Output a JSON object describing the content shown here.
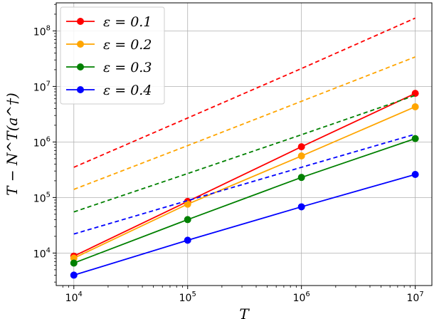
{
  "chart_data": {
    "type": "line",
    "xscale": "log",
    "yscale": "log",
    "xlim": [
      7000,
      14000000
    ],
    "ylim": [
      2600,
      320000000
    ],
    "grid": true,
    "legend_position": "top-left",
    "xlabel": "T",
    "ylabel": "T − N^T(a^†)",
    "x_ticks": [
      {
        "value": 10000,
        "base": "10",
        "exp": "4"
      },
      {
        "value": 100000,
        "base": "10",
        "exp": "5"
      },
      {
        "value": 1000000,
        "base": "10",
        "exp": "6"
      },
      {
        "value": 10000000,
        "base": "10",
        "exp": "7"
      }
    ],
    "y_ticks": [
      {
        "value": 10000,
        "base": "10",
        "exp": "4"
      },
      {
        "value": 100000,
        "base": "10",
        "exp": "5"
      },
      {
        "value": 1000000,
        "base": "10",
        "exp": "6"
      },
      {
        "value": 10000000,
        "base": "10",
        "exp": "7"
      },
      {
        "value": 100000000,
        "base": "10",
        "exp": "8"
      }
    ],
    "x": [
      10000,
      100000,
      1000000,
      10000000
    ],
    "series": [
      {
        "name": "ε = 0.1",
        "color": "#ff0000",
        "values": [
          8800,
          85000,
          820000,
          7500000
        ],
        "bound": [
          350000,
          2700000,
          21000000,
          170000000
        ]
      },
      {
        "name": "ε = 0.2",
        "color": "#ffa500",
        "values": [
          8100,
          76000,
          560000,
          4300000
        ],
        "bound": [
          140000,
          860000,
          5400000,
          34000000
        ]
      },
      {
        "name": "ε = 0.3",
        "color": "#008000",
        "values": [
          6600,
          40000,
          230000,
          1150000
        ],
        "bound": [
          55000,
          270000,
          1350000,
          6900000
        ]
      },
      {
        "name": "ε = 0.4",
        "color": "#0000ff",
        "values": [
          4000,
          17000,
          68000,
          260000
        ],
        "bound": [
          22000,
          88000,
          350000,
          1380000
        ]
      }
    ]
  }
}
